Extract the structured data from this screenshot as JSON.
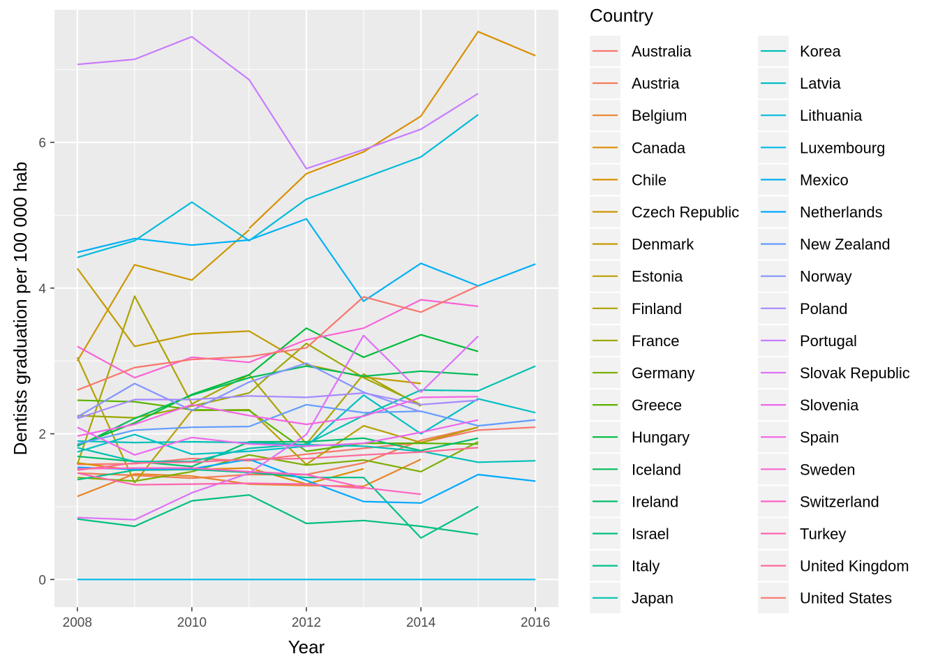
{
  "chart_data": {
    "type": "line",
    "xlabel": "Year",
    "ylabel": "Dentists graduation per 100 000 hab",
    "xlim": [
      2007.6,
      2016.4
    ],
    "ylim": [
      -0.38,
      7.82
    ],
    "x_ticks": [
      2008,
      2010,
      2012,
      2014,
      2016
    ],
    "y_ticks": [
      0,
      2,
      4,
      6
    ],
    "x_tick_labels": [
      "2008",
      "2010",
      "2012",
      "2014",
      "2016"
    ],
    "y_tick_labels": [
      "0",
      "2",
      "4",
      "6"
    ],
    "grid": true,
    "legend": {
      "title": "Country",
      "position": "right",
      "columns": 2
    },
    "years": [
      2008,
      2009,
      2010,
      2011,
      2012,
      2013,
      2014,
      2015,
      2016
    ],
    "series": [
      {
        "name": "Australia",
        "color": "#F8766D",
        "values": [
          1.58,
          1.59,
          1.66,
          1.63,
          1.72,
          1.8,
          1.88,
          2.05,
          2.09
        ]
      },
      {
        "name": "Austria",
        "color": "#F17C56",
        "values": [
          1.46,
          1.43,
          1.39,
          1.44,
          1.44,
          1.6,
          1.91,
          2.09,
          null
        ]
      },
      {
        "name": "Belgium",
        "color": "#E98429",
        "values": [
          1.14,
          1.45,
          1.42,
          1.31,
          1.29,
          1.28,
          1.65,
          null,
          null
        ]
      },
      {
        "name": "Canada",
        "color": "#DE8C00",
        "values": [
          1.6,
          1.5,
          1.51,
          1.53,
          1.31,
          1.52,
          null,
          null,
          null
        ]
      },
      {
        "name": "Chile",
        "color": "#D89000",
        "values": [
          null,
          null,
          null,
          4.82,
          5.57,
          5.87,
          6.36,
          7.52,
          7.19
        ]
      },
      {
        "name": "Czech Republic",
        "color": "#CD9600",
        "values": [
          3.0,
          4.32,
          4.11,
          4.8,
          null,
          null,
          null,
          null,
          null
        ]
      },
      {
        "name": "Denmark",
        "color": "#C49A00",
        "values": [
          4.27,
          3.2,
          3.37,
          3.41,
          2.95,
          2.78,
          2.69,
          null,
          null
        ]
      },
      {
        "name": "Estonia",
        "color": "#B79F00",
        "values": [
          3.05,
          1.33,
          2.32,
          2.33,
          1.58,
          2.11,
          1.88,
          2.09,
          null
        ]
      },
      {
        "name": "Finland",
        "color": "#ABA300",
        "values": [
          1.58,
          3.89,
          2.41,
          2.81,
          1.86,
          2.82,
          2.38,
          null,
          null
        ]
      },
      {
        "name": "France",
        "color": "#9DA700",
        "values": [
          2.25,
          2.22,
          2.38,
          2.56,
          3.24,
          2.77,
          2.4,
          null,
          null
        ]
      },
      {
        "name": "Germany",
        "color": "#7CAE00",
        "values": [
          1.4,
          1.35,
          1.48,
          1.71,
          1.57,
          1.64,
          1.48,
          1.89,
          null
        ]
      },
      {
        "name": "Greece",
        "color": "#5BB300",
        "values": [
          2.46,
          2.44,
          2.33,
          2.32,
          1.76,
          1.87,
          1.87,
          1.86,
          null
        ]
      },
      {
        "name": "Hungary",
        "color": "#00BA38",
        "values": [
          1.84,
          2.15,
          2.54,
          2.81,
          3.45,
          3.05,
          3.36,
          3.13,
          null
        ]
      },
      {
        "name": "Iceland",
        "color": "#00BC56",
        "values": [
          1.83,
          2.21,
          2.53,
          2.77,
          2.93,
          2.79,
          2.86,
          2.81,
          null
        ]
      },
      {
        "name": "Ireland",
        "color": "#00BD6A",
        "values": [
          1.69,
          1.62,
          1.55,
          1.89,
          1.89,
          1.94,
          1.77,
          1.94,
          null
        ]
      },
      {
        "name": "Israel",
        "color": "#00BF7D",
        "values": [
          0.83,
          0.73,
          1.08,
          1.16,
          0.77,
          0.81,
          0.73,
          0.62,
          null
        ]
      },
      {
        "name": "Italy",
        "color": "#00C08B",
        "values": [
          1.37,
          1.5,
          1.51,
          1.47,
          1.4,
          1.4,
          0.57,
          1.0,
          null
        ]
      },
      {
        "name": "Japan",
        "color": "#00C0AF",
        "values": [
          1.81,
          1.62,
          1.62,
          1.8,
          1.86,
          2.25,
          2.6,
          2.59,
          2.93
        ]
      },
      {
        "name": "Korea",
        "color": "#00C0B8",
        "values": [
          1.9,
          1.88,
          1.89,
          1.88,
          1.85,
          1.83,
          1.76,
          1.61,
          1.63
        ]
      },
      {
        "name": "Latvia",
        "color": "#00BFC4",
        "values": [
          1.75,
          1.99,
          1.72,
          1.76,
          1.83,
          2.53,
          2.0,
          2.48,
          2.29
        ]
      },
      {
        "name": "Lithuania",
        "color": "#00BBDA",
        "values": [
          4.42,
          4.65,
          5.18,
          4.65,
          5.22,
          5.51,
          5.8,
          6.38,
          null
        ]
      },
      {
        "name": "Luxembourg",
        "color": "#00B8E7",
        "values": [
          0.0,
          0.0,
          0.0,
          0.0,
          0.0,
          0.0,
          0.0,
          0.0,
          0.0
        ]
      },
      {
        "name": "Mexico",
        "color": "#00B0F6",
        "values": [
          4.49,
          4.68,
          4.59,
          4.66,
          4.95,
          3.82,
          4.34,
          4.03,
          4.33
        ]
      },
      {
        "name": "Netherlands",
        "color": "#00A9FF",
        "values": [
          1.54,
          1.51,
          1.52,
          1.65,
          1.36,
          1.07,
          1.05,
          1.44,
          1.35
        ]
      },
      {
        "name": "New Zealand",
        "color": "#619CFF",
        "values": [
          1.86,
          2.05,
          2.09,
          2.1,
          2.4,
          2.29,
          2.31,
          2.11,
          2.19
        ]
      },
      {
        "name": "Norway",
        "color": "#8494FF",
        "values": [
          2.23,
          2.69,
          2.32,
          2.71,
          2.97,
          2.57,
          2.3,
          null,
          null
        ]
      },
      {
        "name": "Poland",
        "color": "#A58AFF",
        "values": [
          2.21,
          2.47,
          2.47,
          2.52,
          2.5,
          2.56,
          2.4,
          2.46,
          null
        ]
      },
      {
        "name": "Portugal",
        "color": "#C77CFF",
        "values": [
          7.07,
          7.14,
          7.45,
          6.86,
          5.64,
          5.9,
          6.18,
          6.67,
          null
        ]
      },
      {
        "name": "Slovak Republic",
        "color": "#DF70F8",
        "values": [
          0.85,
          0.82,
          1.19,
          1.46,
          1.99,
          3.35,
          2.57,
          3.34,
          null
        ]
      },
      {
        "name": "Slovenia",
        "color": "#ED68ED",
        "values": [
          2.09,
          1.71,
          1.95,
          1.86,
          1.83,
          1.87,
          2.02,
          2.19,
          null
        ]
      },
      {
        "name": "Spain",
        "color": "#F564E3",
        "values": [
          1.97,
          2.13,
          2.4,
          2.25,
          2.13,
          2.24,
          2.5,
          2.51,
          null
        ]
      },
      {
        "name": "Sweden",
        "color": "#FA62D4",
        "values": [
          3.2,
          2.77,
          3.05,
          2.98,
          3.29,
          3.45,
          3.84,
          3.75,
          null
        ]
      },
      {
        "name": "Switzerland",
        "color": "#FF61C3",
        "values": [
          1.52,
          1.53,
          1.53,
          1.48,
          1.44,
          1.26,
          1.17,
          null,
          null
        ]
      },
      {
        "name": "Turkey",
        "color": "#FF64B0",
        "values": [
          1.46,
          1.3,
          1.31,
          1.32,
          1.31,
          1.25,
          null,
          null,
          null
        ]
      },
      {
        "name": "United Kingdom",
        "color": "#FF6A98",
        "values": [
          1.5,
          1.6,
          1.61,
          1.65,
          1.66,
          1.71,
          1.75,
          1.81,
          null
        ]
      },
      {
        "name": "United States",
        "color": "#F8766D",
        "values": [
          2.6,
          2.91,
          3.02,
          3.06,
          3.18,
          3.88,
          3.67,
          4.03,
          null
        ]
      }
    ]
  }
}
